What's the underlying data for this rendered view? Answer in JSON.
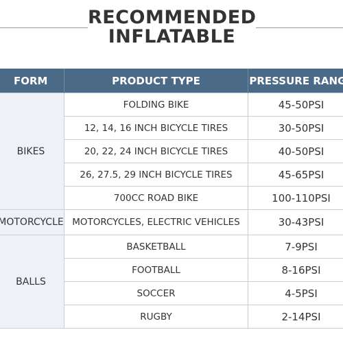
{
  "title": {
    "line1": "RECOMMENDED",
    "line2": "INFLATABLE"
  },
  "table": {
    "headers": {
      "form": "FORM",
      "product": "PRODUCT TYPE",
      "pressure": "PRESSURE RANGE"
    },
    "groups": [
      {
        "form": "BIKES",
        "rows": [
          {
            "product": "FOLDING BIKE",
            "pressure": "45-50PSI"
          },
          {
            "product": "12, 14, 16 INCH BICYCLE TIRES",
            "pressure": "30-50PSI"
          },
          {
            "product": "20, 22, 24 INCH BICYCLE TIRES",
            "pressure": "40-50PSI"
          },
          {
            "product": "26, 27.5, 29 INCH BICYCLE TIRES",
            "pressure": "45-65PSI"
          },
          {
            "product": "700CC ROAD BIKE",
            "pressure": "100-110PSI"
          }
        ]
      },
      {
        "form": "MOTORCYCLE",
        "rows": [
          {
            "product": "MOTORCYCLES, ELECTRIC VEHICLES",
            "pressure": "30-43PSI"
          }
        ]
      },
      {
        "form": "BALLS",
        "rows": [
          {
            "product": "BASKETBALL",
            "pressure": "7-9PSI"
          },
          {
            "product": "FOOTBALL",
            "pressure": "8-16PSI"
          },
          {
            "product": "SOCCER",
            "pressure": "4-5PSI"
          },
          {
            "product": "RUGBY",
            "pressure": "2-14PSI"
          }
        ]
      }
    ]
  }
}
